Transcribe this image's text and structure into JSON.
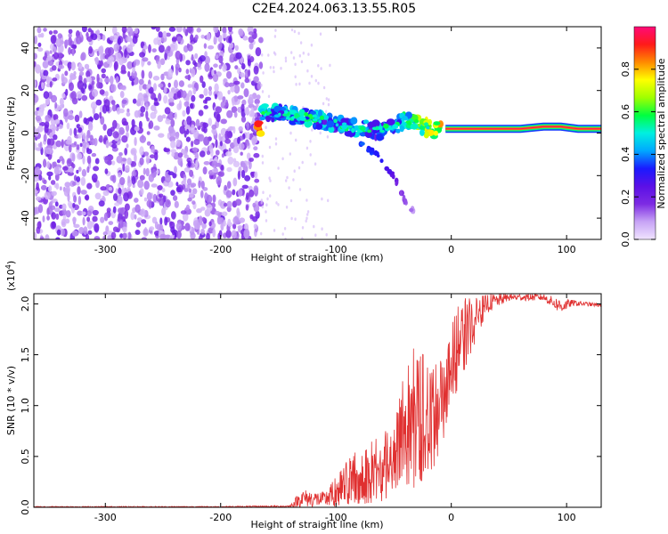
{
  "title": "C2E4.2024.063.13.55.R05",
  "chart_data": [
    {
      "type": "heatmap",
      "xlabel": "Height of straight line (km)",
      "ylabel": "Frequency (Hz)",
      "xlim": [
        -362,
        130
      ],
      "ylim": [
        -50,
        50
      ],
      "xticks": [
        -300,
        -200,
        -100,
        0,
        100
      ],
      "yticks": [
        -40,
        -20,
        0,
        20,
        40
      ],
      "colorbar": {
        "label": "Normalized spectral amplitude",
        "range": [
          0,
          1
        ],
        "ticks": [
          "0.0",
          "0.2",
          "0.4",
          "0.6",
          "0.8"
        ],
        "tick_values": [
          0,
          0.2,
          0.4,
          0.6,
          0.8
        ],
        "colors": [
          "#f0e4ff",
          "#c7a3f5",
          "#7d2be3",
          "#5b10e6",
          "#1a1aff",
          "#00a8ff",
          "#00f0e0",
          "#00ff40",
          "#a0ff00",
          "#ffff00",
          "#ff8a00",
          "#ff1a1a",
          "#ff0a78"
        ]
      },
      "noise_region_x": [
        -362,
        -165
      ],
      "main_ridge": [
        {
          "x": -165,
          "y": 10,
          "a": 0.55
        },
        {
          "x": -150,
          "y": 9,
          "a": 0.55
        },
        {
          "x": -135,
          "y": 8,
          "a": 0.6
        },
        {
          "x": -120,
          "y": 7,
          "a": 0.55
        },
        {
          "x": -105,
          "y": 5,
          "a": 0.5
        },
        {
          "x": -90,
          "y": 3,
          "a": 0.5
        },
        {
          "x": -75,
          "y": 2,
          "a": 0.5
        },
        {
          "x": -60,
          "y": 1,
          "a": 0.5
        },
        {
          "x": -48,
          "y": 4,
          "a": 0.55
        },
        {
          "x": -38,
          "y": 6,
          "a": 0.6
        },
        {
          "x": -28,
          "y": 4,
          "a": 0.75
        },
        {
          "x": -18,
          "y": 2,
          "a": 0.85
        },
        {
          "x": -5,
          "y": 2,
          "a": 0.85
        },
        {
          "x": 5,
          "y": 2,
          "a": 0.95
        },
        {
          "x": 30,
          "y": 2,
          "a": 0.95
        },
        {
          "x": 60,
          "y": 2,
          "a": 0.95
        },
        {
          "x": 80,
          "y": 3,
          "a": 0.9
        },
        {
          "x": 95,
          "y": 3,
          "a": 0.9
        },
        {
          "x": 110,
          "y": 2,
          "a": 0.95
        },
        {
          "x": 130,
          "y": 2,
          "a": 0.95
        }
      ],
      "secondary_trace": [
        {
          "x": -80,
          "y": -5,
          "a": 0.35
        },
        {
          "x": -65,
          "y": -10,
          "a": 0.3
        },
        {
          "x": -50,
          "y": -20,
          "a": 0.2
        },
        {
          "x": -40,
          "y": -32,
          "a": 0.1
        },
        {
          "x": -32,
          "y": -37,
          "a": 0.08
        }
      ]
    },
    {
      "type": "line",
      "xlabel": "Height of straight line (km)",
      "ylabel": "SNR (10 * v/v)",
      "yscale_label": "(x10",
      "yscale_exponent": "4",
      "yscale_suffix": ")",
      "xlim": [
        -362,
        130
      ],
      "ylim": [
        0,
        2.1
      ],
      "xticks": [
        -300,
        -200,
        -100,
        0,
        100
      ],
      "yticks": [
        0.0,
        0.5,
        1.0,
        1.5,
        2.0
      ],
      "ytick_labels": [
        "0.0",
        "0.5",
        "1.0",
        "1.5",
        "2.0"
      ],
      "series": [
        {
          "color": "#e03030",
          "envelope": [
            {
              "x": -362,
              "lo": 0.0,
              "hi": 0.01
            },
            {
              "x": -200,
              "lo": 0.0,
              "hi": 0.01
            },
            {
              "x": -140,
              "lo": 0.0,
              "hi": 0.02
            },
            {
              "x": -130,
              "lo": 0.0,
              "hi": 0.18
            },
            {
              "x": -110,
              "lo": 0.0,
              "hi": 0.15
            },
            {
              "x": -100,
              "lo": 0.0,
              "hi": 0.3
            },
            {
              "x": -85,
              "lo": 0.02,
              "hi": 0.6
            },
            {
              "x": -75,
              "lo": 0.03,
              "hi": 0.55
            },
            {
              "x": -65,
              "lo": 0.05,
              "hi": 0.75
            },
            {
              "x": -50,
              "lo": 0.08,
              "hi": 0.75
            },
            {
              "x": -40,
              "lo": 0.15,
              "hi": 1.5
            },
            {
              "x": -30,
              "lo": 0.2,
              "hi": 1.6
            },
            {
              "x": -20,
              "lo": 0.3,
              "hi": 1.45
            },
            {
              "x": -10,
              "lo": 0.5,
              "hi": 1.5
            },
            {
              "x": 0,
              "lo": 1.0,
              "hi": 1.8
            },
            {
              "x": 10,
              "lo": 1.3,
              "hi": 2.1
            },
            {
              "x": 20,
              "lo": 1.6,
              "hi": 2.05
            },
            {
              "x": 30,
              "lo": 1.9,
              "hi": 2.1
            },
            {
              "x": 50,
              "lo": 2.03,
              "hi": 2.1
            },
            {
              "x": 80,
              "lo": 2.03,
              "hi": 2.1
            },
            {
              "x": 95,
              "lo": 1.9,
              "hi": 2.05
            },
            {
              "x": 105,
              "lo": 1.98,
              "hi": 2.04
            },
            {
              "x": 130,
              "lo": 1.97,
              "hi": 2.0
            }
          ]
        }
      ]
    }
  ]
}
